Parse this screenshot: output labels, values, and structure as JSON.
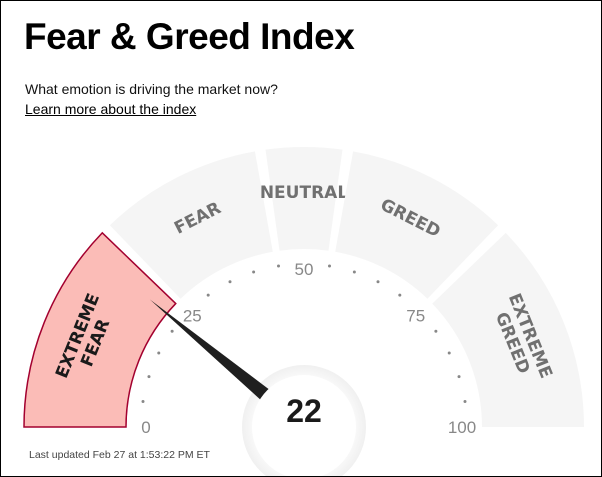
{
  "header": {
    "title": "Fear & Greed Index",
    "subtitle": "What emotion is driving the market now?",
    "learn_more_link": "Learn more about the index"
  },
  "gauge": {
    "value": 22,
    "value_label": "22",
    "min": 0,
    "max": 100,
    "scale_labels": [
      "0",
      "25",
      "50",
      "75",
      "100"
    ],
    "active_zone": "extreme-fear",
    "zones": [
      {
        "id": "extreme-fear",
        "lines": [
          "EXTREME",
          "FEAR"
        ],
        "from": 0,
        "to": 25
      },
      {
        "id": "fear",
        "lines": [
          "FEAR"
        ],
        "from": 25,
        "to": 45
      },
      {
        "id": "neutral",
        "lines": [
          "NEUTRAL"
        ],
        "from": 45,
        "to": 55
      },
      {
        "id": "greed",
        "lines": [
          "GREED"
        ],
        "from": 55,
        "to": 75
      },
      {
        "id": "extreme-greed",
        "lines": [
          "EXTREME",
          "GREED"
        ],
        "from": 75,
        "to": 100
      }
    ],
    "colors": {
      "zone_fill": "#f5f5f5",
      "zone_text": "#707070",
      "active_fill": "#fbbcb7",
      "active_stroke": "#a3002f",
      "active_text": "#1a1a1a",
      "needle": "#1f1f1f",
      "tick": "#888888",
      "scale_text": "#888888"
    }
  },
  "footer": {
    "last_updated": "Last updated Feb 27 at 1:53:22 PM ET"
  }
}
